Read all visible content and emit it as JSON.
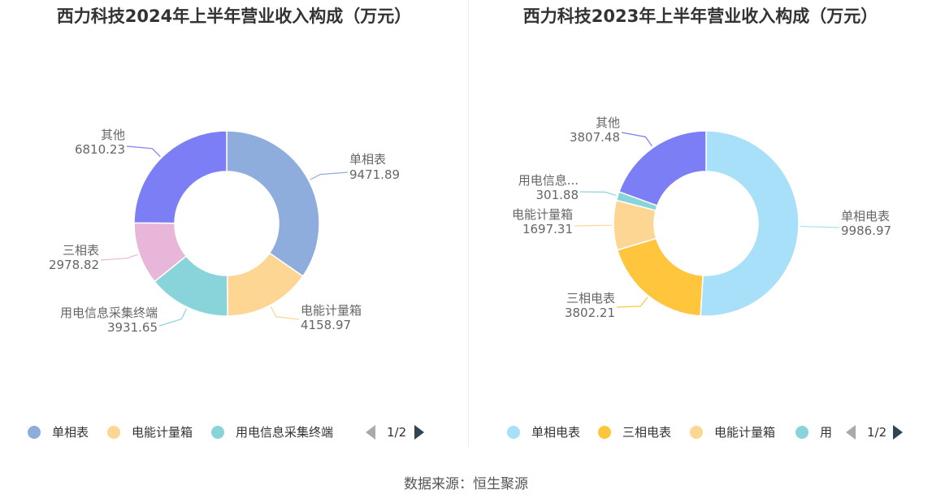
{
  "source": "数据来源：恒生聚源",
  "chart_data": [
    {
      "type": "pie",
      "donut": true,
      "title": "西力科技2024年上半年营业收入构成（万元）",
      "categories": [
        "单相表",
        "电能计量箱",
        "用电信息采集终端",
        "三相表",
        "其他"
      ],
      "values": [
        9471.89,
        4158.97,
        3931.65,
        2978.82,
        6810.23
      ],
      "value_labels": [
        "9471.89",
        "4158.97",
        "3931.65",
        "2978.82",
        "6810.23"
      ],
      "colors": [
        "#8eacdc",
        "#fdd694",
        "#88d4da",
        "#e8b6d8",
        "#7b7ef5"
      ],
      "legend": {
        "position": "bottom",
        "items": [
          {
            "label": "单相表",
            "color": "#8eacdc"
          },
          {
            "label": "电能计量箱",
            "color": "#fdd694"
          },
          {
            "label": "用电信息采集终端",
            "color": "#88d4da"
          }
        ],
        "page": "1/2"
      }
    },
    {
      "type": "pie",
      "donut": true,
      "title": "西力科技2023年上半年营业收入构成（万元）",
      "categories": [
        "单相电表",
        "三相电表",
        "电能计量箱",
        "用电信息...",
        "其他"
      ],
      "values": [
        9986.97,
        3802.21,
        1697.31,
        301.88,
        3807.48
      ],
      "value_labels": [
        "9986.97",
        "3802.21",
        "1697.31",
        "301.88",
        "3807.48"
      ],
      "colors": [
        "#a8dff9",
        "#ffc53d",
        "#fdd694",
        "#88d4da",
        "#7b7ef5"
      ],
      "legend": {
        "position": "bottom",
        "items": [
          {
            "label": "单相电表",
            "color": "#a8dff9"
          },
          {
            "label": "三相电表",
            "color": "#ffc53d"
          },
          {
            "label": "电能计量箱",
            "color": "#fdd694"
          },
          {
            "label": "用",
            "color": "#88d4da"
          }
        ],
        "page": "1/2"
      }
    }
  ]
}
